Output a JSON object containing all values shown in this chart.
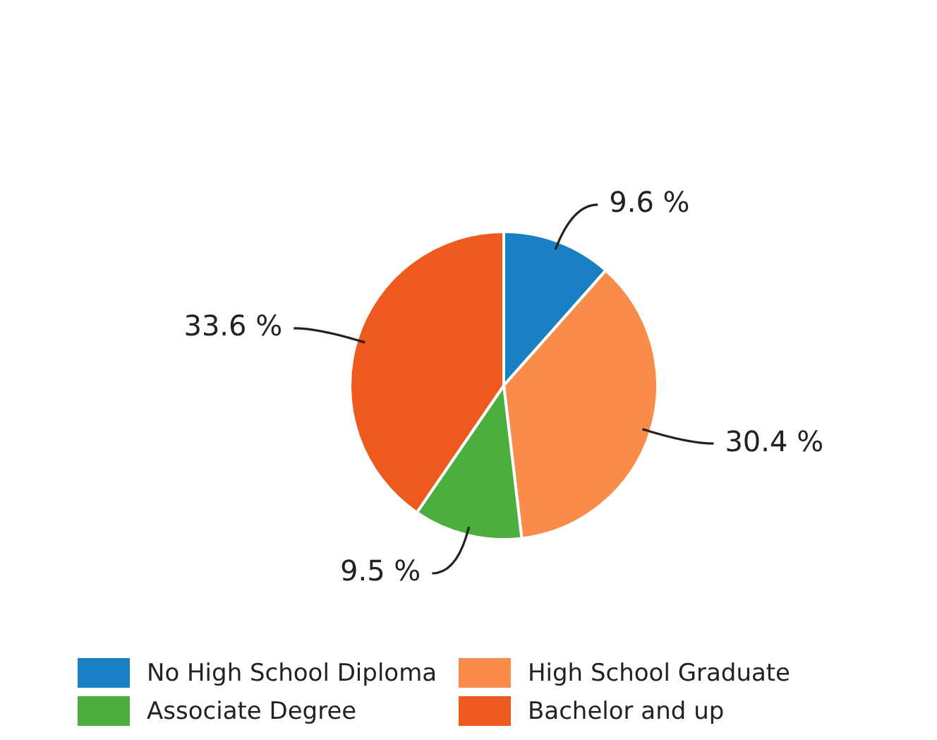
{
  "chart_data": {
    "type": "pie",
    "categories": [
      "No High School Diploma",
      "High School Graduate",
      "Associate Degree",
      "Bachelor and up"
    ],
    "values": [
      9.6,
      30.4,
      9.5,
      33.6
    ],
    "colors": [
      "#1a80c4",
      "#f98c4a",
      "#4cae3c",
      "#ee5a1e"
    ],
    "value_labels": [
      "9.6 %",
      "30.4 %",
      "9.5 %",
      "33.6 %"
    ],
    "legend": "bottom"
  }
}
